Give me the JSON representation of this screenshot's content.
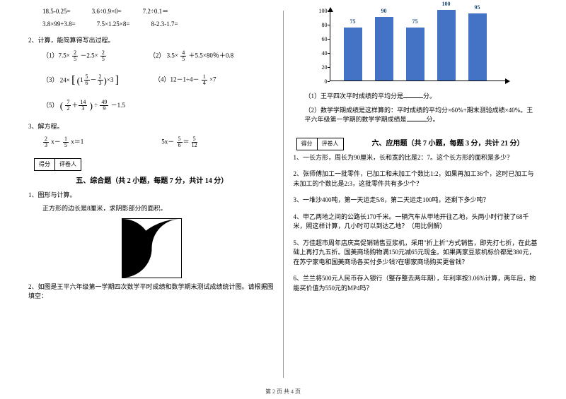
{
  "left": {
    "arith_row1": [
      "18.5-0.25=",
      "3.6÷0.9×0=",
      "7.2÷0.1＝"
    ],
    "arith_row2": [
      "3.8×99+3.8=",
      "7.5×1.25×8=",
      "8-2.3-1.7="
    ],
    "calc_title": "2、计算，能简算得写出过程。",
    "p1_a": "（1）7.5×",
    "p1_b": " －2.5×",
    "p2_a": "（2）",
    "p2_b": "3.5×",
    "p2_c": "＋5.5×80％＋0.8",
    "p3_a": "（3）",
    "p3_b": "24×",
    "p4_a": "（4）12－1÷4－",
    "p4_b": "×7",
    "p5_a": "（5）",
    "p5_b": "÷",
    "p5_c": "－1.5",
    "eq_title": "3、解方程。",
    "eq1_a": "x－",
    "eq1_b": "x＝1",
    "eq2_a": "5x－",
    "sec5_score": [
      "得分",
      "评卷人"
    ],
    "sec5_title": "五、综合题（共 2 小题，每题 7 分，共计 14 分）",
    "q1": "1、图形与计算。",
    "q1_sub": "正方形的边长是8厘米，求阴影部分的面积。",
    "q2": "2、如图是王平六年级第一学期四次数学平时成绩和数学期末测试成绩统计图。请根据图填空："
  },
  "right": {
    "chart": {
      "ylim": [
        0,
        100
      ],
      "ytick_step": 20,
      "bars": [
        {
          "value": 75,
          "label": "75"
        },
        {
          "value": 90,
          "label": "90"
        },
        {
          "value": 75,
          "label": "75"
        },
        {
          "value": 100,
          "label": "100"
        },
        {
          "value": 95,
          "label": "95"
        }
      ],
      "bar_color": "#4472c4",
      "label_color": "#1f4e79",
      "axis_color": "#000000",
      "background": "#ffffff"
    },
    "q1a": "（1）王平四次平时成绩的平均分是",
    "q1b": "分。",
    "q2a": "（2）数学学期成绩是这样算的：平时成绩的平均分×60%+期末测验成绩×40%。王平六年级第一学期的数学学期成绩是",
    "q2b": "分。",
    "sec6_score": [
      "得分",
      "评卷人"
    ],
    "sec6_title": "六、应用题（共 7 小题，每题 3 分，共计 21 分）",
    "aq1": "1、一长方形，周长为90厘米，长和宽的比是2：7。这个长方形的面积是多少？",
    "aq2": "2、张师傅加工一批零件，已加工和未加工个数比1:2，如果再加工36个，这时已加工与未加工的个数比是2:3，这批零件共有多少个？",
    "aq3": "3、一堆沙400吨，第一天运走5/8，第二天运走100吨，还剩下多少吨？",
    "aq4": "4、甲乙两地之间的公路长170千米。一辆汽车从甲地开往乙地，头两小时行驶了68千米，照这样计算，几小时可以到达乙地？（用比例解）",
    "aq5": "5、万佳超市周年店庆高促销销售豆浆机，采用\"折上折\"方式销售，即先打七折，在此基础上再打九五折。国美商场购物满150元减65元现金。如果两家豆浆机标价都是380元，在苏宁家电和国美商场各买付多少钱?在哪家商场购买更省钱？",
    "aq6": "6、兰兰将500元人民币存入银行（整存整去两年期），年利率按3.06%计算，两年后，她能买价值为550元的MP4吗？"
  },
  "footer": "第 2 页 共 4 页"
}
